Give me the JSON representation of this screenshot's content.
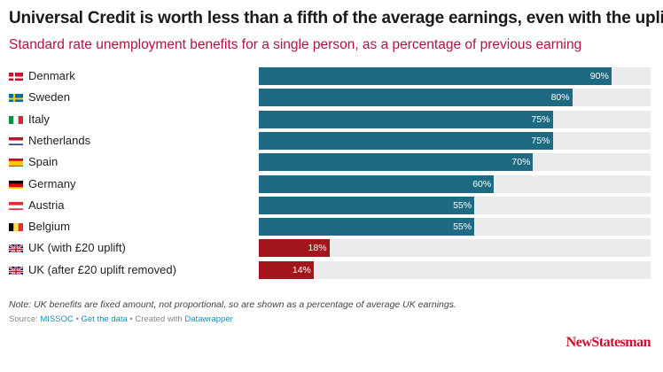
{
  "chart_data": {
    "type": "bar",
    "orientation": "horizontal",
    "title": "Universal Credit is worth less than a fifth of the average earnings, even with the uplift",
    "subtitle": "Standard rate unemployment benefits for a single person, as a percentage of previous earning",
    "categories": [
      "Denmark",
      "Sweden",
      "Italy",
      "Netherlands",
      "Spain",
      "Germany",
      "Austria",
      "Belgium",
      "UK (with £20 uplift)",
      "UK (after £20 uplift removed)"
    ],
    "values": [
      90,
      80,
      75,
      75,
      70,
      60,
      55,
      55,
      18,
      14
    ],
    "value_labels": [
      "90%",
      "80%",
      "75%",
      "75%",
      "70%",
      "60%",
      "55%",
      "55%",
      "18%",
      "14%"
    ],
    "flags": [
      "dk",
      "se",
      "it",
      "nl",
      "es",
      "de",
      "at",
      "be",
      "uk",
      "uk"
    ],
    "bar_colors": [
      "#1d6a82",
      "#1d6a82",
      "#1d6a82",
      "#1d6a82",
      "#1d6a82",
      "#1d6a82",
      "#1d6a82",
      "#1d6a82",
      "#a3141d",
      "#a3141d"
    ],
    "xlim": [
      0,
      100
    ],
    "xlabel": "",
    "ylabel": ""
  },
  "footer": {
    "note": "Note: UK benefits are fixed amount, not proportional, so are shown as a percentage of average UK earnings.",
    "source_prefix": "Source: ",
    "source_name": "MISSOC",
    "separator1": " • ",
    "get_data": "Get the data",
    "separator2": " • Created with ",
    "created_with": "Datawrapper"
  },
  "brand": "NewStatesman",
  "colors": {
    "accent": "#b5123f",
    "track": "#ebebeb"
  }
}
